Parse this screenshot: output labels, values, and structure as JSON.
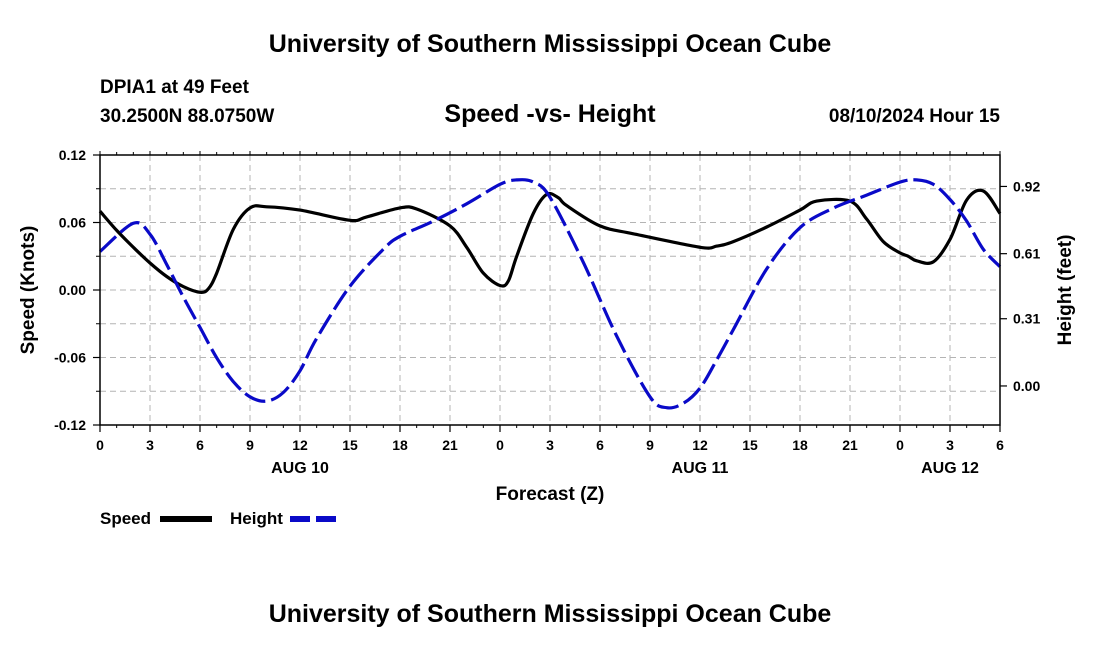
{
  "header": {
    "title": "University of Southern Mississippi Ocean Cube",
    "station": "DPIA1 at 49 Feet",
    "coords": "30.2500N  88.0750W",
    "datetime": "08/10/2024 Hour 15"
  },
  "footer": {
    "title": "University of Southern Mississippi Ocean Cube"
  },
  "legend": {
    "speed_label": "Speed",
    "height_label": "Height"
  },
  "colors": {
    "speed": "#000000",
    "height": "#0a0ac8",
    "grid": "#b4b4b4"
  },
  "chart_data": {
    "type": "line",
    "title": "Speed -vs- Height",
    "xlabel": "Forecast (Z)",
    "ylabel": "Speed (Knots)",
    "y2label": "Height (feet)",
    "x_range": [
      0,
      54
    ],
    "ylim": [
      -0.12,
      0.12
    ],
    "y2lim": [
      -0.18,
      1.065
    ],
    "x_tick_values": [
      0,
      3,
      6,
      9,
      12,
      15,
      18,
      21,
      24,
      27,
      30,
      33,
      36,
      39,
      42,
      45,
      48,
      51,
      54
    ],
    "x_tick_labels": [
      "0",
      "3",
      "6",
      "9",
      "12",
      "15",
      "18",
      "21",
      "0",
      "3",
      "6",
      "9",
      "12",
      "15",
      "18",
      "21",
      "0",
      "3",
      "6"
    ],
    "date_labels": [
      {
        "x": 12,
        "text": "AUG 10"
      },
      {
        "x": 36,
        "text": "AUG 11"
      },
      {
        "x": 51,
        "text": "AUG 12"
      }
    ],
    "y_ticks": [
      0.12,
      0.06,
      0.0,
      -0.06,
      -0.12
    ],
    "y_tick_labels": [
      "0.12",
      "0.06",
      "0.00",
      "-0.06",
      "-0.12"
    ],
    "y2_ticks": [
      0.92,
      0.61,
      0.31,
      0.0
    ],
    "y2_tick_labels": [
      "0.92",
      "0.61",
      "0.31",
      "0.00"
    ],
    "series": [
      {
        "name": "Speed",
        "axis": "left",
        "style": "solid",
        "x": [
          0,
          1,
          2,
          3,
          4,
          5,
          6,
          6.5,
          7,
          8,
          9,
          10,
          12,
          15,
          16,
          18,
          19,
          21,
          22,
          23,
          24,
          24.5,
          25,
          26,
          26.8,
          27.5,
          28,
          30,
          32,
          36,
          37,
          38,
          40,
          42,
          43,
          45,
          46,
          47,
          48,
          48.5,
          49,
          50,
          51,
          52,
          53,
          54
        ],
        "y": [
          0.07,
          0.053,
          0.038,
          0.024,
          0.012,
          0.003,
          -0.002,
          0.001,
          0.015,
          0.054,
          0.073,
          0.074,
          0.071,
          0.062,
          0.065,
          0.073,
          0.072,
          0.057,
          0.038,
          0.015,
          0.004,
          0.008,
          0.03,
          0.068,
          0.085,
          0.082,
          0.075,
          0.057,
          0.05,
          0.038,
          0.039,
          0.043,
          0.056,
          0.071,
          0.079,
          0.079,
          0.063,
          0.043,
          0.033,
          0.03,
          0.026,
          0.025,
          0.045,
          0.08,
          0.088,
          0.068
        ]
      },
      {
        "name": "Height",
        "axis": "right",
        "style": "dashed",
        "x": [
          0,
          2,
          3,
          4,
          5,
          6,
          7,
          8,
          9,
          10,
          11,
          12,
          13,
          15,
          17,
          18,
          20,
          22,
          24,
          25,
          26,
          27,
          29,
          31,
          33,
          34,
          35,
          36,
          37,
          38,
          40,
          42,
          44,
          46,
          48,
          49,
          50,
          51,
          52,
          53,
          54
        ],
        "y": [
          0.62,
          0.75,
          0.7,
          0.56,
          0.41,
          0.27,
          0.13,
          0.02,
          -0.05,
          -0.07,
          -0.03,
          0.07,
          0.22,
          0.46,
          0.63,
          0.69,
          0.76,
          0.84,
          0.93,
          0.95,
          0.94,
          0.87,
          0.57,
          0.23,
          -0.05,
          -0.1,
          -0.08,
          -0.01,
          0.12,
          0.26,
          0.54,
          0.73,
          0.82,
          0.88,
          0.94,
          0.95,
          0.93,
          0.86,
          0.76,
          0.63,
          0.55
        ]
      }
    ]
  }
}
